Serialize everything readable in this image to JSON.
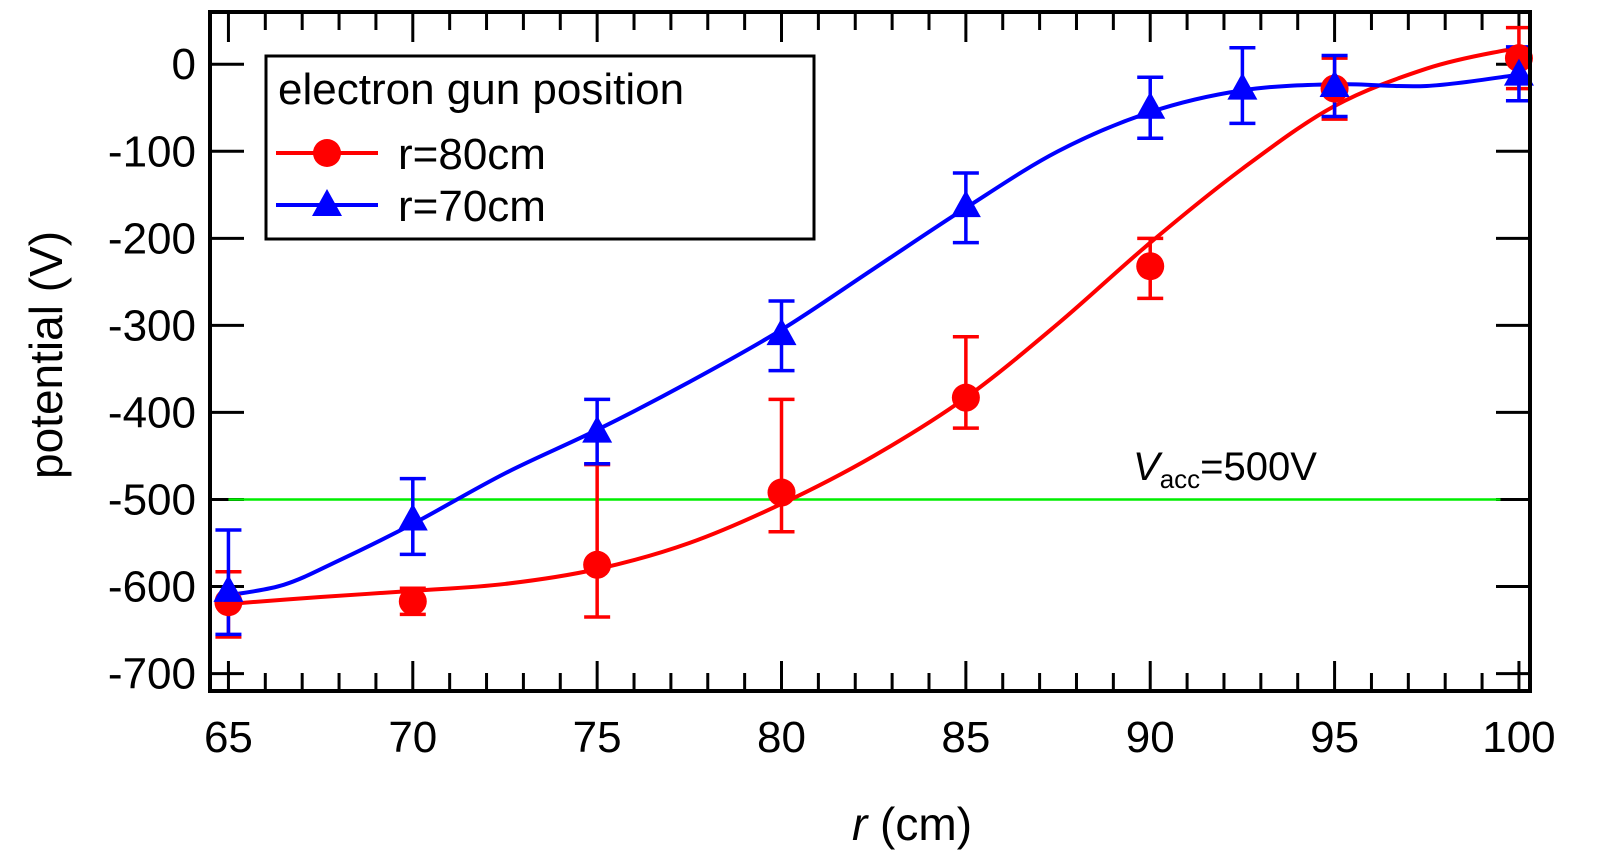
{
  "chart_data": {
    "type": "scatter",
    "xlabel_var": "r",
    "xlabel_unit": " (cm)",
    "ylabel": "potential (V)",
    "xlim": [
      64.5,
      100.3
    ],
    "ylim": [
      -720,
      60
    ],
    "xticks": [
      65,
      70,
      75,
      80,
      85,
      90,
      95,
      100
    ],
    "yticks": [
      0,
      -100,
      -200,
      -300,
      -400,
      -500,
      -600,
      -700
    ],
    "legend": {
      "title": "electron gun position",
      "position": "top-left"
    },
    "series": [
      {
        "name": "r=80cm",
        "color": "#ff0000",
        "marker": "circle",
        "points": [
          {
            "x": 65,
            "y": -618,
            "err_lo": 40,
            "err_hi": 35
          },
          {
            "x": 70,
            "y": -617,
            "err_lo": 15,
            "err_hi": 15
          },
          {
            "x": 75,
            "y": -575,
            "err_lo": 60,
            "err_hi": 115
          },
          {
            "x": 80,
            "y": -492,
            "err_lo": 45,
            "err_hi": 107
          },
          {
            "x": 85,
            "y": -383,
            "err_lo": 35,
            "err_hi": 70
          },
          {
            "x": 90,
            "y": -232,
            "err_lo": 37,
            "err_hi": 32
          },
          {
            "x": 95,
            "y": -28,
            "err_lo": 35,
            "err_hi": 35
          },
          {
            "x": 100,
            "y": 7,
            "err_lo": 35,
            "err_hi": 35
          }
        ],
        "fit": [
          [
            65,
            -620
          ],
          [
            67.5,
            -612
          ],
          [
            70,
            -605
          ],
          [
            72.5,
            -597
          ],
          [
            75,
            -580
          ],
          [
            77.5,
            -550
          ],
          [
            80,
            -505
          ],
          [
            82.5,
            -450
          ],
          [
            85,
            -383
          ],
          [
            87.5,
            -298
          ],
          [
            90,
            -205
          ],
          [
            92.5,
            -120
          ],
          [
            95,
            -48
          ],
          [
            97.5,
            -5
          ],
          [
            99.5,
            15
          ],
          [
            100,
            16
          ]
        ]
      },
      {
        "name": "r=70cm",
        "color": "#0000ff",
        "marker": "triangle",
        "points": [
          {
            "x": 65,
            "y": -605,
            "err_lo": 50,
            "err_hi": 70
          },
          {
            "x": 70,
            "y": -523,
            "err_lo": 40,
            "err_hi": 47
          },
          {
            "x": 75,
            "y": -422,
            "err_lo": 37,
            "err_hi": 37
          },
          {
            "x": 80,
            "y": -310,
            "err_lo": 42,
            "err_hi": 38
          },
          {
            "x": 85,
            "y": -163,
            "err_lo": 42,
            "err_hi": 38
          },
          {
            "x": 90,
            "y": -50,
            "err_lo": 35,
            "err_hi": 35
          },
          {
            "x": 92.5,
            "y": -28,
            "err_lo": 40,
            "err_hi": 47
          },
          {
            "x": 95,
            "y": -25,
            "err_lo": 35,
            "err_hi": 35
          },
          {
            "x": 100,
            "y": -12,
            "err_lo": 30,
            "err_hi": 32
          }
        ],
        "fit": [
          [
            65,
            -610
          ],
          [
            66.5,
            -598
          ],
          [
            68,
            -570
          ],
          [
            70,
            -528
          ],
          [
            72.5,
            -470
          ],
          [
            75,
            -420
          ],
          [
            77.5,
            -365
          ],
          [
            80,
            -305
          ],
          [
            82.5,
            -235
          ],
          [
            85,
            -165
          ],
          [
            87.5,
            -100
          ],
          [
            90,
            -55
          ],
          [
            92.5,
            -30
          ],
          [
            95,
            -23
          ],
          [
            97.5,
            -25
          ],
          [
            100,
            -12
          ]
        ]
      }
    ],
    "reference_line": {
      "y": -500,
      "color": "#00ee00",
      "label_var": "V",
      "label_sub": "acc",
      "label_rest": "=500V"
    }
  }
}
